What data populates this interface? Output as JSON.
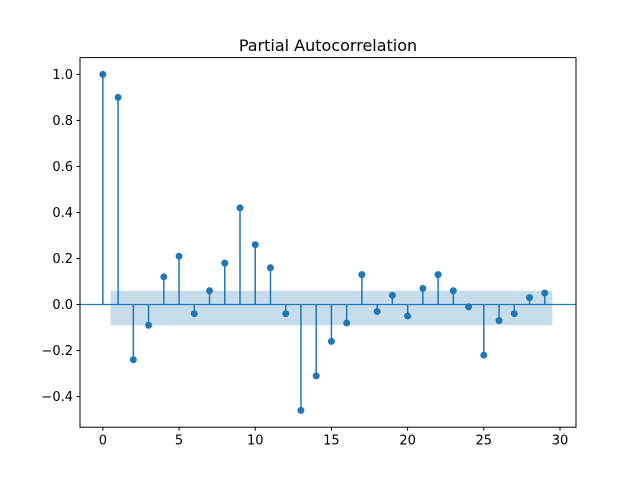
{
  "chart_data": {
    "type": "scatter",
    "plot_style": "stem",
    "title": "Partial Autocorrelation",
    "xlabel": "",
    "ylabel": "",
    "x": [
      0,
      1,
      2,
      3,
      4,
      5,
      6,
      7,
      8,
      9,
      10,
      11,
      12,
      13,
      14,
      15,
      16,
      17,
      18,
      19,
      20,
      21,
      22,
      23,
      24,
      25,
      26,
      27,
      28,
      29
    ],
    "values": [
      1.0,
      0.9,
      -0.24,
      -0.09,
      0.12,
      0.21,
      -0.04,
      0.06,
      0.18,
      0.42,
      0.26,
      0.16,
      -0.04,
      -0.46,
      -0.31,
      -0.16,
      -0.08,
      0.13,
      -0.03,
      0.04,
      -0.05,
      0.07,
      0.13,
      0.06,
      -0.01,
      -0.22,
      -0.07,
      -0.04,
      0.03,
      0.05
    ],
    "xlim": [
      -1.5,
      31.05
    ],
    "ylim": [
      -0.533,
      1.073
    ],
    "xticks": {
      "values": [
        0,
        5,
        10,
        15,
        20,
        25,
        30
      ],
      "labels": [
        "0",
        "5",
        "10",
        "15",
        "20",
        "25",
        "30"
      ]
    },
    "yticks": {
      "values": [
        -0.4,
        -0.2,
        0.0,
        0.2,
        0.4,
        0.6,
        0.8,
        1.0
      ],
      "labels": [
        "−0.4",
        "−0.2",
        "0.0",
        "0.2",
        "0.4",
        "0.6",
        "0.8",
        "1.0"
      ]
    },
    "confidence_band": {
      "x_start": 0.5,
      "x_end": 29.5,
      "upper": 0.06,
      "lower": -0.09
    },
    "grid": false,
    "legend": false,
    "colors": {
      "accent": "#1f77b4",
      "band_fill": "#1f77b4",
      "band_opacity": 0.25,
      "spine": "#000000",
      "text": "#000000",
      "background": "#ffffff"
    }
  }
}
